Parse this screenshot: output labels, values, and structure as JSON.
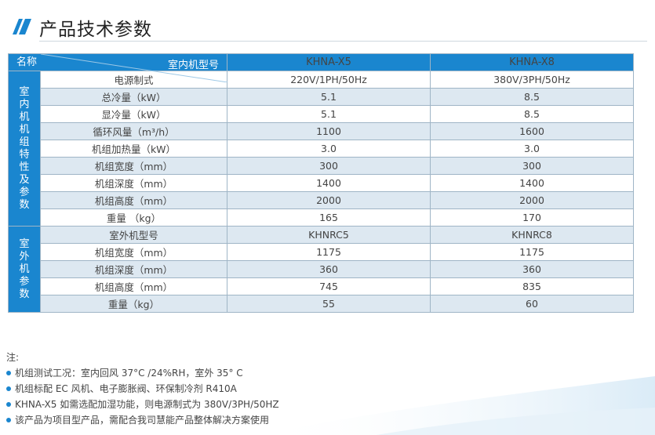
{
  "title": "产品技术参数",
  "table": {
    "header": {
      "diagonal_top": "室内机型号",
      "diagonal_bottom": "名称",
      "models": [
        "KHNA-X5",
        "KHNA-X8"
      ]
    },
    "indoor_group_label": "室\n内\n机\n机\n组\n特\n性\n及\n参\n数",
    "indoor_rows": [
      {
        "name": "电源制式",
        "v1": "220V/1PH/50Hz",
        "v2": "380V/3PH/50Hz"
      },
      {
        "name": "总冷量（kW）",
        "v1": "5.1",
        "v2": "8.5"
      },
      {
        "name": "显冷量（kW）",
        "v1": "5.1",
        "v2": "8.5"
      },
      {
        "name": "循环风量（m³/h）",
        "v1": "1100",
        "v2": "1600"
      },
      {
        "name": "机组加热量（kW）",
        "v1": "3.0",
        "v2": "3.0"
      },
      {
        "name": "机组宽度（mm）",
        "v1": "300",
        "v2": "300"
      },
      {
        "name": "机组深度（mm）",
        "v1": "1400",
        "v2": "1400"
      },
      {
        "name": "机组高度（mm）",
        "v1": "2000",
        "v2": "2000"
      },
      {
        "name": "重量 （kg）",
        "v1": "165",
        "v2": "170"
      }
    ],
    "outdoor_group_label": "室\n外\n机\n参\n数",
    "outdoor_rows": [
      {
        "name": "室外机型号",
        "v1": "KHNRC5",
        "v2": "KHNRC8"
      },
      {
        "name": "机组宽度（mm）",
        "v1": "1175",
        "v2": "1175"
      },
      {
        "name": "机组深度（mm）",
        "v1": "360",
        "v2": "360"
      },
      {
        "name": "机组高度（mm）",
        "v1": "745",
        "v2": "835"
      },
      {
        "name": "重量（kg）",
        "v1": "55",
        "v2": "60"
      }
    ]
  },
  "notes": {
    "label": "注:",
    "items": [
      "机组测试工况：室内回风 37°C /24%RH，室外 35° C",
      "机组标配 EC 风机、电子膨胀阀、环保制冷剂 R410A",
      "KHNA-X5 如需选配加湿功能，则电源制式为 380V/3PH/50HZ",
      "该产品为项目型产品，需配合我司慧能产品整体解决方案使用"
    ]
  },
  "colors": {
    "accent": "#1a86cf",
    "alt_row": "#dde8f1"
  }
}
